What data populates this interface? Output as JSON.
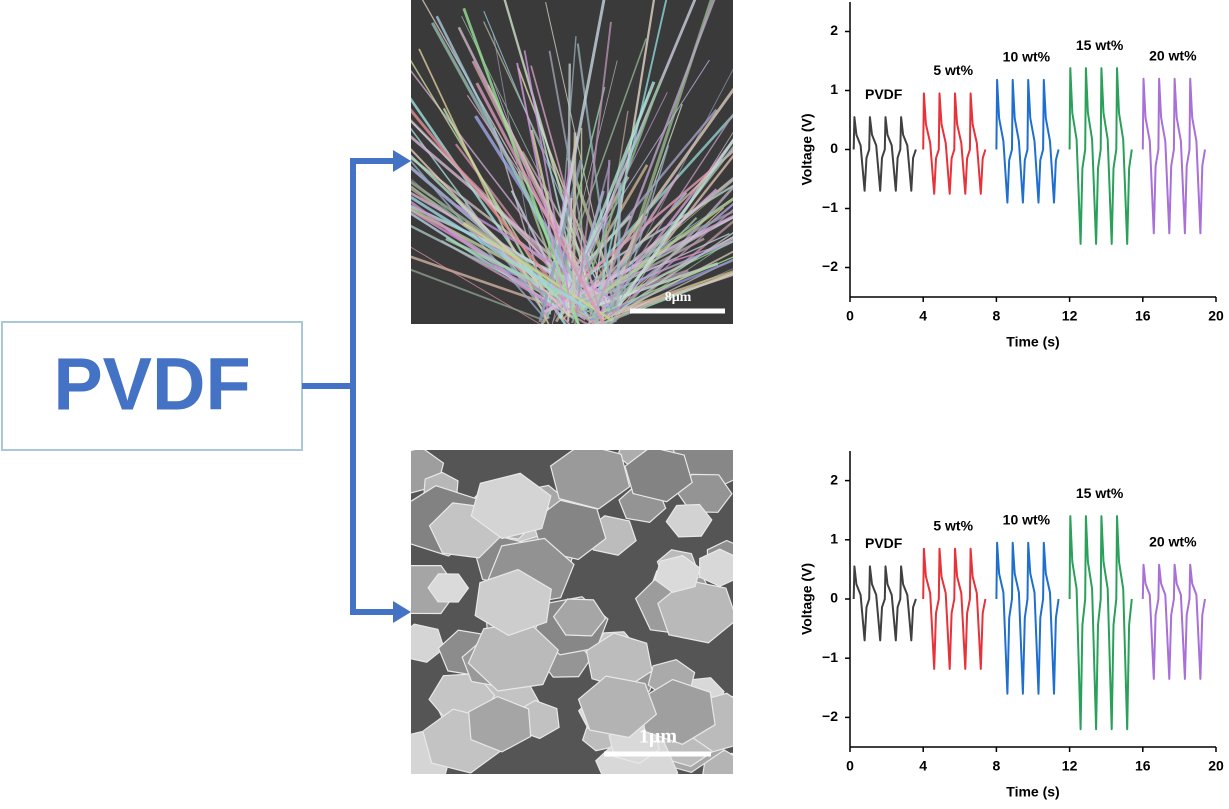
{
  "diagram": {
    "label": "PVDF"
  },
  "images": [
    {
      "scale_bar": "8μm"
    },
    {
      "scale_bar": "1μm"
    }
  ],
  "chart_data": [
    {
      "type": "line",
      "xlabel": "Time (s)",
      "ylabel": "Voltage (V)",
      "xlim": [
        0,
        20
      ],
      "xticks": [
        0,
        4,
        8,
        12,
        16,
        20
      ],
      "ylim": [
        -2.5,
        2.5
      ],
      "yticks": [
        {
          "value": -2,
          "label": "−2"
        },
        {
          "value": -1,
          "label": "−1"
        },
        0,
        1,
        2
      ],
      "series": [
        {
          "name": "PVDF",
          "color": "#404040",
          "x": [
            0.2,
            0.24,
            0.35,
            0.58,
            0.8,
            0.9,
            1.05,
            1.09,
            1.2,
            1.43,
            1.65,
            1.75,
            1.9,
            1.94,
            2.05,
            2.28,
            2.5,
            2.6,
            2.75,
            2.79,
            2.9,
            3.13,
            3.35,
            3.45,
            3.6
          ],
          "values": [
            0,
            0.55,
            0.25,
            0.07,
            -0.7,
            -0.14,
            0,
            0.55,
            0.25,
            0.07,
            -0.7,
            -0.14,
            0,
            0.55,
            0.25,
            0.07,
            -0.7,
            -0.14,
            0,
            0.55,
            0.25,
            0.07,
            -0.7,
            -0.14,
            0
          ]
        },
        {
          "name": "5 wt%",
          "color": "#e8323a",
          "x": [
            4.0,
            4.04,
            4.15,
            4.38,
            4.6,
            4.7,
            4.85,
            4.89,
            5.0,
            5.23,
            5.45,
            5.55,
            5.7,
            5.74,
            5.85,
            6.08,
            6.3,
            6.4,
            6.55,
            6.59,
            6.7,
            6.93,
            7.15,
            7.25,
            7.4
          ],
          "values": [
            0,
            0.95,
            0.43,
            0.11,
            -0.75,
            -0.15,
            0,
            0.95,
            0.43,
            0.11,
            -0.75,
            -0.15,
            0,
            0.95,
            0.43,
            0.11,
            -0.75,
            -0.15,
            0,
            0.95,
            0.43,
            0.11,
            -0.75,
            -0.15,
            0
          ]
        },
        {
          "name": "10 wt%",
          "color": "#1f6fd1",
          "x": [
            8.0,
            8.04,
            8.15,
            8.38,
            8.6,
            8.7,
            8.85,
            8.89,
            9.0,
            9.23,
            9.45,
            9.55,
            9.7,
            9.74,
            9.85,
            10.08,
            10.3,
            10.4,
            10.55,
            10.59,
            10.7,
            10.93,
            11.15,
            11.25,
            11.4
          ],
          "values": [
            0,
            1.18,
            0.53,
            0.14,
            -0.9,
            -0.18,
            0,
            1.18,
            0.53,
            0.14,
            -0.9,
            -0.18,
            0,
            1.18,
            0.53,
            0.14,
            -0.9,
            -0.18,
            0,
            1.18,
            0.53,
            0.14,
            -0.9,
            -0.18,
            0
          ]
        },
        {
          "name": "15 wt%",
          "color": "#2aa05a",
          "x": [
            12.0,
            12.04,
            12.15,
            12.38,
            12.6,
            12.7,
            12.85,
            12.89,
            13.0,
            13.23,
            13.45,
            13.55,
            13.7,
            13.74,
            13.85,
            14.08,
            14.3,
            14.4,
            14.55,
            14.59,
            14.7,
            14.93,
            15.15,
            15.25,
            15.4
          ],
          "values": [
            0,
            1.38,
            0.62,
            0.17,
            -1.6,
            -0.32,
            0,
            1.38,
            0.62,
            0.17,
            -1.6,
            -0.32,
            0,
            1.38,
            0.62,
            0.17,
            -1.6,
            -0.32,
            0,
            1.38,
            0.62,
            0.17,
            -1.6,
            -0.32,
            0
          ]
        },
        {
          "name": "20 wt%",
          "color": "#a870d8",
          "x": [
            16.0,
            16.04,
            16.15,
            16.38,
            16.6,
            16.7,
            16.85,
            16.89,
            17.0,
            17.23,
            17.45,
            17.55,
            17.7,
            17.74,
            17.85,
            18.08,
            18.3,
            18.4,
            18.55,
            18.59,
            18.7,
            18.93,
            19.15,
            19.25,
            19.4
          ],
          "values": [
            0,
            1.2,
            0.54,
            0.14,
            -1.42,
            -0.28,
            0,
            1.2,
            0.54,
            0.14,
            -1.42,
            -0.28,
            0,
            1.2,
            0.54,
            0.14,
            -1.42,
            -0.28,
            0,
            1.2,
            0.54,
            0.14,
            -1.42,
            -0.28,
            0
          ]
        }
      ]
    },
    {
      "type": "line",
      "xlabel": "Time (s)",
      "ylabel": "Voltage (V)",
      "xlim": [
        0,
        20
      ],
      "xticks": [
        0,
        4,
        8,
        12,
        16,
        20
      ],
      "ylim": [
        -2.5,
        2.5
      ],
      "yticks": [
        {
          "value": -2,
          "label": "−2"
        },
        {
          "value": -1,
          "label": "−1"
        },
        0,
        1,
        2
      ],
      "series": [
        {
          "name": "PVDF",
          "color": "#404040",
          "x": [
            0.2,
            0.24,
            0.35,
            0.58,
            0.8,
            0.9,
            1.05,
            1.09,
            1.2,
            1.43,
            1.65,
            1.75,
            1.9,
            1.94,
            2.05,
            2.28,
            2.5,
            2.6,
            2.75,
            2.79,
            2.9,
            3.13,
            3.35,
            3.45,
            3.6
          ],
          "values": [
            0,
            0.55,
            0.25,
            0.07,
            -0.7,
            -0.14,
            0,
            0.55,
            0.25,
            0.07,
            -0.7,
            -0.14,
            0,
            0.55,
            0.25,
            0.07,
            -0.7,
            -0.14,
            0,
            0.55,
            0.25,
            0.07,
            -0.7,
            -0.14,
            0
          ]
        },
        {
          "name": "5 wt%",
          "color": "#e8323a",
          "x": [
            4.0,
            4.04,
            4.15,
            4.38,
            4.6,
            4.7,
            4.85,
            4.89,
            5.0,
            5.23,
            5.45,
            5.55,
            5.7,
            5.74,
            5.85,
            6.08,
            6.3,
            6.4,
            6.55,
            6.59,
            6.7,
            6.93,
            7.15,
            7.25,
            7.4
          ],
          "values": [
            0,
            0.85,
            0.38,
            0.1,
            -1.18,
            -0.24,
            0,
            0.85,
            0.38,
            0.1,
            -1.18,
            -0.24,
            0,
            0.85,
            0.38,
            0.1,
            -1.18,
            -0.24,
            0,
            0.85,
            0.38,
            0.1,
            -1.18,
            -0.24,
            0
          ]
        },
        {
          "name": "10 wt%",
          "color": "#1f6fd1",
          "x": [
            8.0,
            8.04,
            8.15,
            8.38,
            8.6,
            8.7,
            8.85,
            8.89,
            9.0,
            9.23,
            9.45,
            9.55,
            9.7,
            9.74,
            9.85,
            10.08,
            10.3,
            10.4,
            10.55,
            10.59,
            10.7,
            10.93,
            11.15,
            11.25,
            11.4
          ],
          "values": [
            0,
            0.95,
            0.43,
            0.11,
            -1.6,
            -0.32,
            0,
            0.95,
            0.43,
            0.11,
            -1.6,
            -0.32,
            0,
            0.95,
            0.43,
            0.11,
            -1.6,
            -0.32,
            0,
            0.95,
            0.43,
            0.11,
            -1.6,
            -0.32,
            0
          ]
        },
        {
          "name": "15 wt%",
          "color": "#2aa05a",
          "x": [
            12.0,
            12.04,
            12.15,
            12.38,
            12.6,
            12.7,
            12.85,
            12.89,
            13.0,
            13.23,
            13.45,
            13.55,
            13.7,
            13.74,
            13.85,
            14.08,
            14.3,
            14.4,
            14.55,
            14.59,
            14.7,
            14.93,
            15.15,
            15.25,
            15.4
          ],
          "values": [
            0,
            1.4,
            0.63,
            0.17,
            -2.2,
            -0.44,
            0,
            1.4,
            0.63,
            0.17,
            -2.2,
            -0.44,
            0,
            1.4,
            0.63,
            0.17,
            -2.2,
            -0.44,
            0,
            1.4,
            0.63,
            0.17,
            -2.2,
            -0.44,
            0
          ]
        },
        {
          "name": "20 wt%",
          "color": "#a870d8",
          "x": [
            16.0,
            16.04,
            16.15,
            16.38,
            16.6,
            16.7,
            16.85,
            16.89,
            17.0,
            17.23,
            17.45,
            17.55,
            17.7,
            17.74,
            17.85,
            18.08,
            18.3,
            18.4,
            18.55,
            18.59,
            18.7,
            18.93,
            19.15,
            19.25,
            19.4
          ],
          "values": [
            0,
            0.58,
            0.26,
            0.07,
            -1.35,
            -0.27,
            0,
            0.58,
            0.26,
            0.07,
            -1.35,
            -0.27,
            0,
            0.58,
            0.26,
            0.07,
            -1.35,
            -0.27,
            0,
            0.58,
            0.26,
            0.07,
            -1.35,
            -0.27,
            0
          ]
        }
      ]
    }
  ]
}
